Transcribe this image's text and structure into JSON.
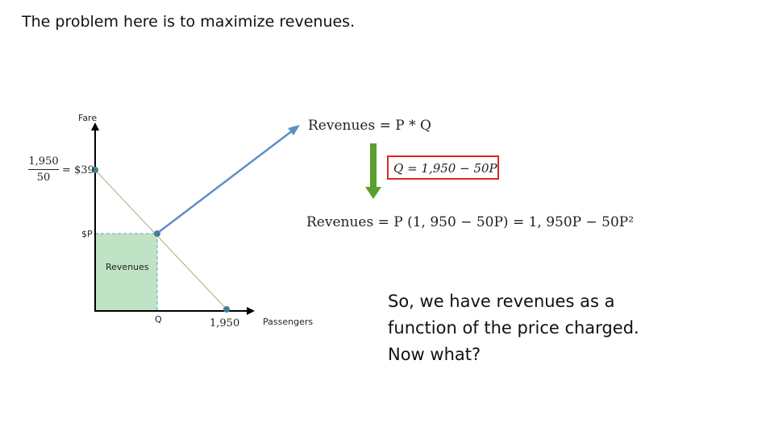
{
  "slide": {
    "title": "The problem here is to maximize revenues.",
    "note_lines": [
      "So, we have revenues as a",
      "function of the price charged.",
      "Now what?"
    ]
  },
  "diagram": {
    "y_axis_label": "Fare",
    "x_axis_label": "Passengers",
    "price_label": "$P",
    "quantity_label": "Q",
    "area_label": "Revenues",
    "intercept_fraction_numerator": "1,950",
    "intercept_fraction_denominator": "50",
    "intercept_value": "= $39",
    "x_intercept_label": "1,950"
  },
  "equations": {
    "revenue_definition": "Revenues = P * Q",
    "demand": "Q = 1,950 − 50P",
    "revenue_function": "Revenues = P (1, 950 − 50P) = 1, 950P − 50P²"
  },
  "colors": {
    "area_fill": "#bfe3c4",
    "demand_line": "#b3a77a",
    "point": "#3f7f96",
    "blue_arrow": "#5b8fc7",
    "green_arrow": "#5aa02c",
    "box_border": "#d62828"
  }
}
